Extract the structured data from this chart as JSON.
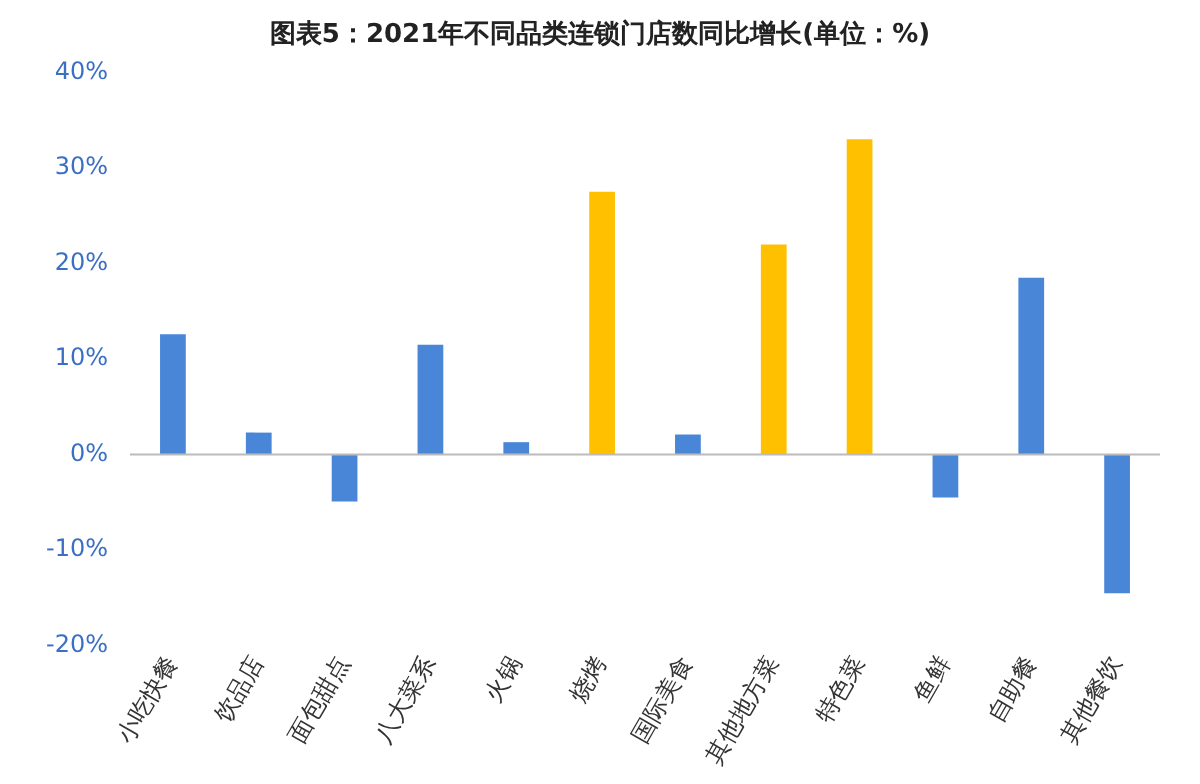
{
  "chart_data": {
    "type": "bar",
    "title": "图表5：2021年不同品类连锁门店数同比增长(单位：%)",
    "categories": [
      "小吃快餐",
      "饮品店",
      "面包甜点",
      "八大菜系",
      "火锅",
      "烧烤",
      "国际美食",
      "其他地方菜",
      "特色菜",
      "鱼鲜",
      "自助餐",
      "其他餐饮"
    ],
    "values": [
      12.6,
      2.3,
      -4.9,
      11.5,
      1.3,
      27.5,
      2.1,
      22,
      33,
      -4.5,
      18.5,
      -14.5
    ],
    "colors": [
      "#4a86d8",
      "#4a86d8",
      "#4a86d8",
      "#4a86d8",
      "#4a86d8",
      "#ffc000",
      "#4a86d8",
      "#ffc000",
      "#ffc000",
      "#4a86d8",
      "#4a86d8",
      "#4a86d8"
    ],
    "ylim": [
      -20,
      40
    ],
    "yticks": [
      {
        "value": -20,
        "label": "-20%"
      },
      {
        "value": -10,
        "label": "-10%"
      },
      {
        "value": 0,
        "label": "0%"
      },
      {
        "value": 10,
        "label": "10%"
      },
      {
        "value": 20,
        "label": "20%"
      },
      {
        "value": 30,
        "label": "30%"
      },
      {
        "value": 40,
        "label": "40%"
      }
    ],
    "ref_lines": [
      {
        "axis": "y",
        "value": 0,
        "color": "#bbbbbb"
      }
    ],
    "grid": false,
    "legend": false
  }
}
